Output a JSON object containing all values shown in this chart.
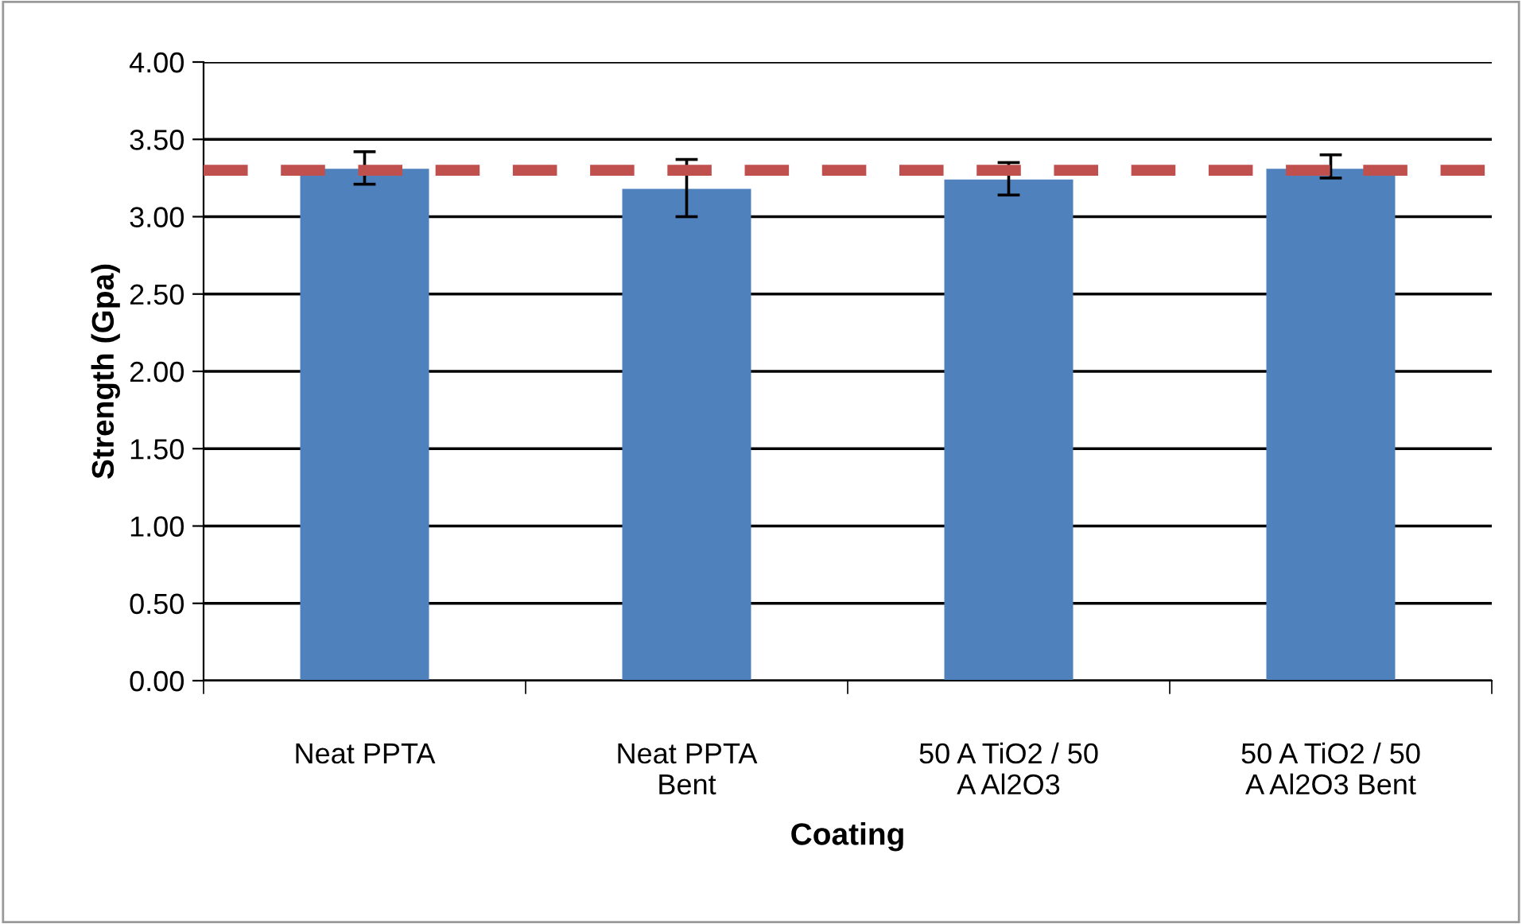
{
  "chart_data": {
    "type": "bar",
    "xlabel": "Coating",
    "ylabel": "Strength (Gpa)",
    "categories": [
      "Neat PPTA",
      "Neat PPTA\nBent",
      "50 A TiO2 / 50\nA Al2O3",
      "50 A TiO2 / 50\nA Al2O3 Bent"
    ],
    "values": [
      3.31,
      3.18,
      3.24,
      3.31
    ],
    "errors": [
      [
        3.21,
        3.42
      ],
      [
        3.0,
        3.37
      ],
      [
        3.14,
        3.35
      ],
      [
        3.25,
        3.4
      ]
    ],
    "color": "#4f81bd",
    "ylim": [
      0,
      4
    ],
    "yticks": [
      {
        "value": 0,
        "label": "0.00"
      },
      {
        "value": 0.5,
        "label": "0.50"
      },
      {
        "value": 1,
        "label": "1.00"
      },
      {
        "value": 1.5,
        "label": "1.50"
      },
      {
        "value": 2,
        "label": "2.00"
      },
      {
        "value": 2.5,
        "label": "2.50"
      },
      {
        "value": 3,
        "label": "3.00"
      },
      {
        "value": 3.5,
        "label": "3.50"
      },
      {
        "value": 4,
        "label": "4.00"
      }
    ],
    "grid": "y",
    "ref_lines": [
      {
        "axis": "y",
        "value": 3.3,
        "color": "#c0504d",
        "line_style": "dashed"
      }
    ]
  }
}
